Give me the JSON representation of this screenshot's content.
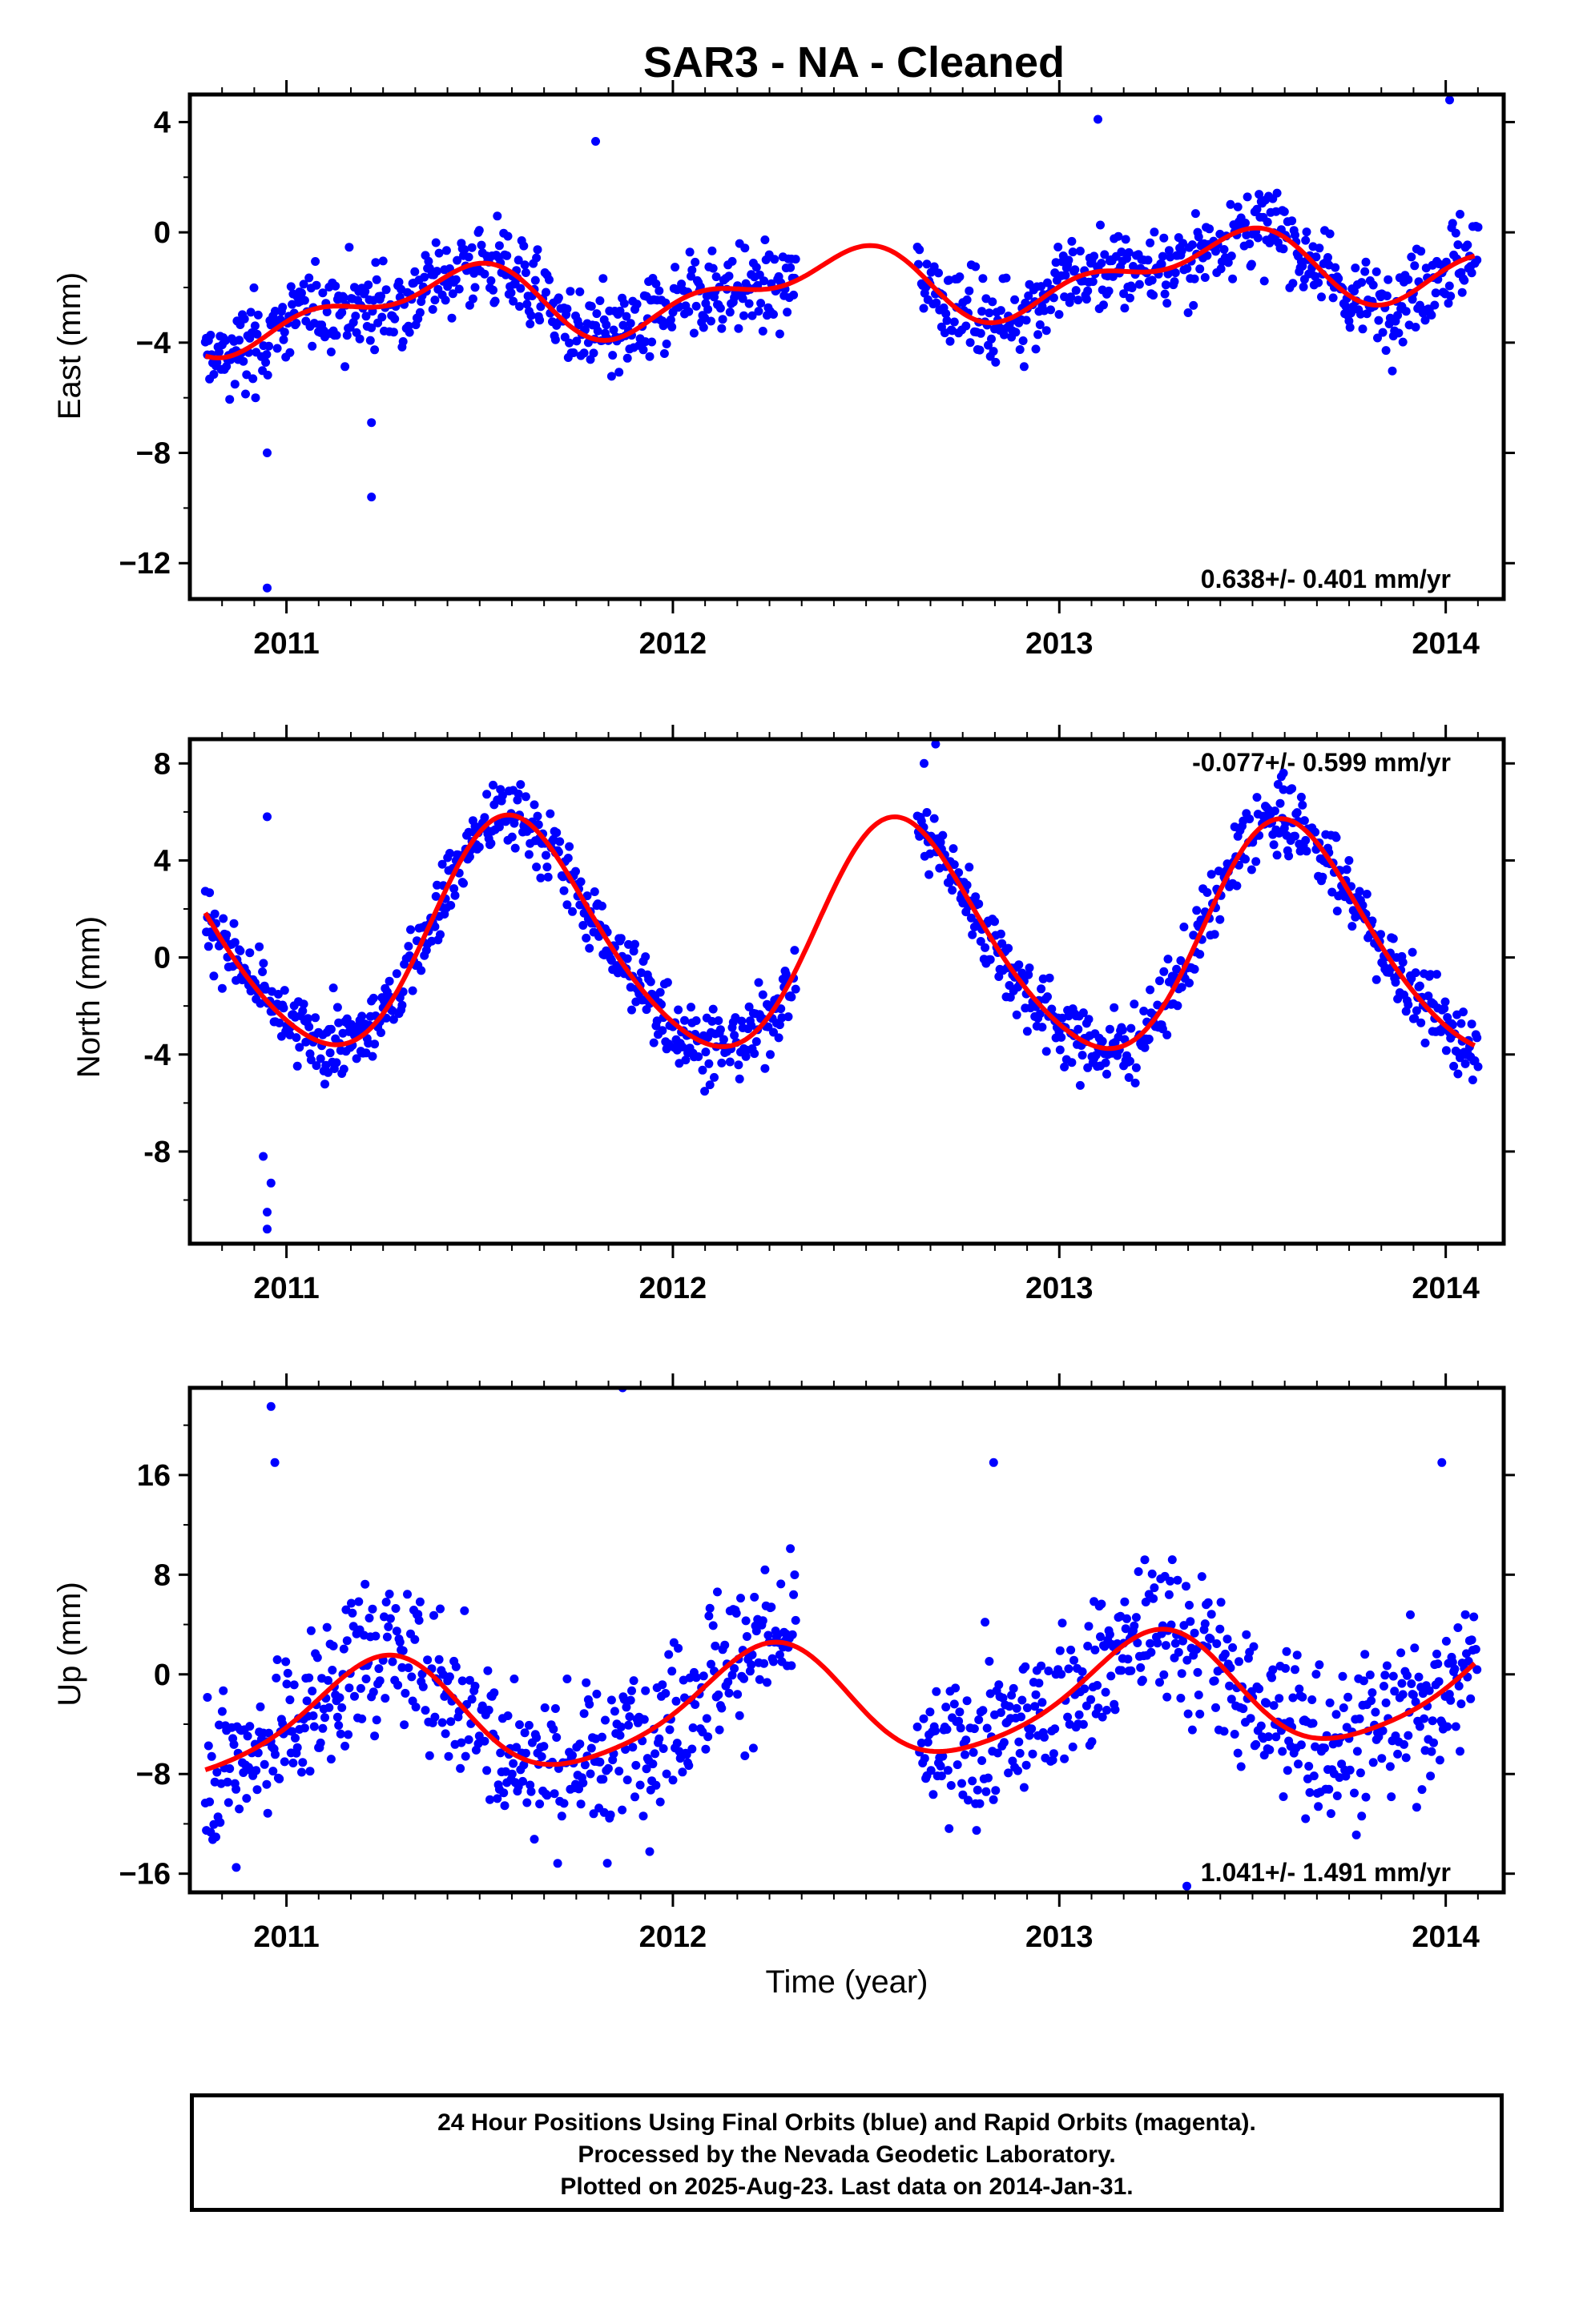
{
  "title": "SAR3  - NA - Cleaned",
  "xlabel": "Time (year)",
  "footer": {
    "line1": "24 Hour Positions Using Final Orbits (blue) and Rapid Orbits (magenta).",
    "line2": "Processed by the Nevada Geodetic Laboratory.",
    "line3": "Plotted on 2025-Aug-23. Last data on 2014-Jan-31."
  },
  "colors": {
    "data": "#0000ff",
    "model": "#ff0000",
    "frame": "#000000",
    "rapid": "#ff00ff"
  },
  "chart_data": [
    {
      "type": "scatter",
      "panel": "east",
      "ylabel": "East (mm)",
      "rate_text": "0.638+/- 0.401 mm/yr",
      "rate_position": "bottom-right",
      "xlim": [
        2010.75,
        2014.15
      ],
      "ylim": [
        -13.3,
        5
      ],
      "yticks": [
        4,
        0,
        -4,
        -8,
        -12
      ],
      "ytick_labels": [
        "4",
        "0",
        "−4",
        "−8",
        "−12"
      ],
      "xticks": [
        2011,
        2012,
        2013,
        2014
      ],
      "xtick_labels": [
        "2011",
        "2012",
        "2013",
        "2014"
      ],
      "gap": [
        2012.32,
        2012.63
      ],
      "model": {
        "offset": -2.0,
        "trend": 0.638,
        "annual": [
          -0.9,
          0.6
        ],
        "semiannual": [
          0.55,
          0.35
        ],
        "start": 2010.79,
        "end": 2014.08
      },
      "series_desc": "daily solutions (blue) with seasonal + trend model (red)",
      "noise": 1.1,
      "outliers": [
        {
          "x": 2010.95,
          "y": -12.9
        },
        {
          "x": 2010.95,
          "y": -8.0
        },
        {
          "x": 2011.22,
          "y": -9.6
        },
        {
          "x": 2011.22,
          "y": -6.9
        },
        {
          "x": 2010.92,
          "y": -6.0
        },
        {
          "x": 2011.8,
          "y": 3.3
        },
        {
          "x": 2013.1,
          "y": 4.1
        },
        {
          "x": 2014.01,
          "y": 4.8
        }
      ]
    },
    {
      "type": "scatter",
      "panel": "north",
      "ylabel": "North (mm)",
      "rate_text": "-0.077+/- 0.599 mm/yr",
      "rate_position": "top-right",
      "xlim": [
        2010.75,
        2014.15
      ],
      "ylim": [
        -11.8,
        9
      ],
      "yticks": [
        8,
        4,
        0,
        -4,
        -8
      ],
      "ytick_labels": [
        "8",
        "4",
        "0",
        "-4",
        "-8"
      ],
      "xticks": [
        2011,
        2012,
        2013,
        2014
      ],
      "xtick_labels": [
        "2011",
        "2012",
        "2013",
        "2014"
      ],
      "gap": [
        2012.32,
        2012.63
      ],
      "model": {
        "offset": 0.7,
        "trend": -0.077,
        "annual": [
          -3.9,
          -2.6
        ],
        "semiannual": [
          0.5,
          0.2
        ],
        "start": 2010.79,
        "end": 2014.08
      },
      "series_desc": "daily solutions (blue) with seasonal + trend model (red)",
      "noise": 1.05,
      "outliers": [
        {
          "x": 2010.95,
          "y": -11.2
        },
        {
          "x": 2010.95,
          "y": -10.5
        },
        {
          "x": 2010.96,
          "y": -9.3
        },
        {
          "x": 2010.94,
          "y": -8.2
        },
        {
          "x": 2010.95,
          "y": 5.8
        },
        {
          "x": 2012.68,
          "y": 8.8
        },
        {
          "x": 2012.65,
          "y": 8.0
        },
        {
          "x": 2013.58,
          "y": 7.6
        }
      ]
    },
    {
      "type": "scatter",
      "panel": "up",
      "ylabel": "Up (mm)",
      "rate_text": "1.041+/- 1.491 mm/yr",
      "rate_position": "bottom-right",
      "xlim": [
        2010.75,
        2014.15
      ],
      "ylim": [
        -17.5,
        23
      ],
      "yticks": [
        16,
        8,
        0,
        -8,
        -16
      ],
      "ytick_labels": [
        "16",
        "8",
        "0",
        "−8",
        "−16"
      ],
      "xticks": [
        2011,
        2012,
        2013,
        2014
      ],
      "xtick_labels": [
        "2011",
        "2012",
        "2013",
        "2014"
      ],
      "gap": [
        2012.32,
        2012.63
      ],
      "model": {
        "offset": -2.4,
        "trend": 1.041,
        "annual": [
          0.2,
          4.5
        ],
        "semiannual": [
          -0.6,
          -0.4
        ],
        "start": 2010.79,
        "end": 2014.08
      },
      "series_desc": "daily solutions (blue) with seasonal + trend model (red)",
      "noise": 4.3,
      "outliers": [
        {
          "x": 2010.96,
          "y": 21.5
        },
        {
          "x": 2011.87,
          "y": 23.0
        },
        {
          "x": 2010.97,
          "y": 17.0
        },
        {
          "x": 2012.83,
          "y": 17.0
        },
        {
          "x": 2013.99,
          "y": 17.0
        },
        {
          "x": 2010.87,
          "y": -15.5
        },
        {
          "x": 2013.33,
          "y": -17.0
        }
      ]
    }
  ]
}
